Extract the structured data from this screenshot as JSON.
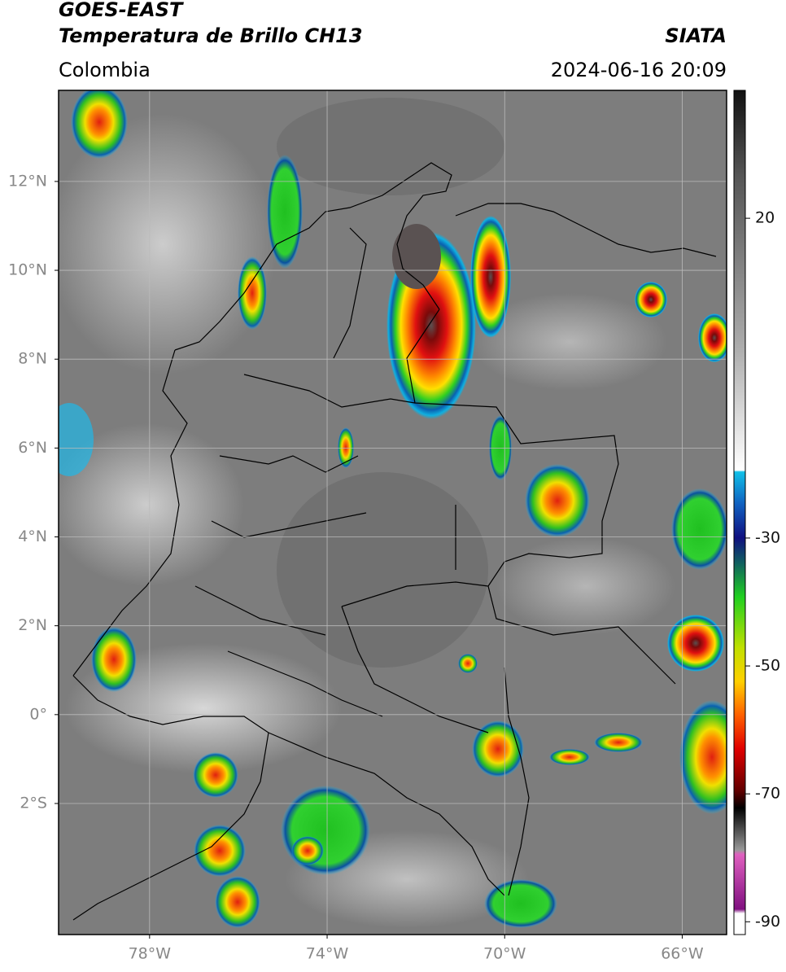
{
  "header": {
    "satellite": "GOES-EAST",
    "product": "Temperatura de Brillo CH13",
    "region": "Colombia",
    "source": "SIATA",
    "datetime": "2024-06-16 20:09"
  },
  "map": {
    "lonlim": [
      -80.05,
      -65.0
    ],
    "latlim": [
      -4.95,
      14.05
    ],
    "lonticks": [
      {
        "value": -78,
        "label": "78°W"
      },
      {
        "value": -74,
        "label": "74°W"
      },
      {
        "value": -70,
        "label": "70°W"
      },
      {
        "value": -66,
        "label": "66°W"
      }
    ],
    "latticks": [
      {
        "value": 12,
        "label": "12°N"
      },
      {
        "value": 10,
        "label": "10°N"
      },
      {
        "value": 8,
        "label": "8°N"
      },
      {
        "value": 6,
        "label": "6°N"
      },
      {
        "value": 4,
        "label": "4°N"
      },
      {
        "value": 2,
        "label": "2°N"
      },
      {
        "value": 0,
        "label": "0°"
      },
      {
        "value": -2,
        "label": "2°S"
      }
    ]
  },
  "colorbar": {
    "lim": [
      -92,
      40
    ],
    "ticks": [
      20,
      -30,
      -50,
      -70,
      -90
    ]
  }
}
